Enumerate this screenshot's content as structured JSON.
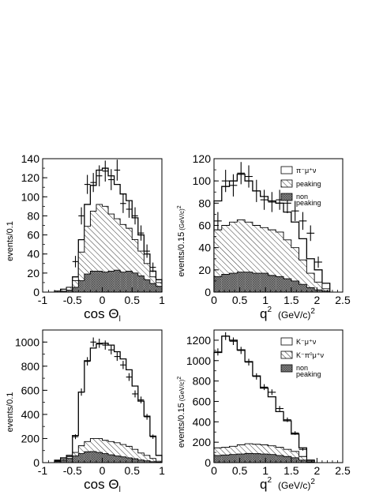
{
  "chart_data": [
    {
      "type": "bar",
      "ylabel": "events/0.1",
      "xlabel_main": "cos Θ",
      "xlabel_sub": "l",
      "xlim": [
        -1,
        1
      ],
      "ylim": [
        0,
        140
      ],
      "xticks": [
        -1,
        -0.5,
        0,
        0.5,
        1
      ],
      "yticks": [
        0,
        20,
        40,
        60,
        80,
        100,
        120,
        140
      ],
      "bin_edges": [
        -0.8,
        -0.7,
        -0.6,
        -0.5,
        -0.4,
        -0.3,
        -0.2,
        -0.1,
        0.0,
        0.1,
        0.2,
        0.3,
        0.4,
        0.5,
        0.6,
        0.7,
        0.8,
        0.9,
        1.0
      ],
      "series": [
        {
          "role": "total",
          "values": [
            1,
            3,
            5,
            16,
            55,
            92,
            112,
            128,
            130,
            122,
            113,
            103,
            96,
            78,
            60,
            40,
            22,
            13
          ]
        },
        {
          "role": "peaking",
          "values": [
            1,
            3,
            5,
            12,
            42,
            69,
            85,
            92,
            90,
            82,
            77,
            71,
            67,
            55,
            43,
            30,
            16,
            10
          ]
        },
        {
          "role": "non-peaking",
          "values": [
            0,
            1,
            2,
            5,
            12,
            19,
            22,
            22,
            21,
            22,
            23,
            21,
            22,
            20,
            17,
            13,
            9,
            6
          ]
        }
      ],
      "points": {
        "x": [
          -0.45,
          -0.35,
          -0.25,
          -0.15,
          -0.05,
          0.05,
          0.15,
          0.25,
          0.35,
          0.45,
          0.55,
          0.65,
          0.75,
          0.85
        ],
        "y": [
          32,
          80,
          113,
          115,
          122,
          127,
          118,
          128,
          93,
          87,
          80,
          62,
          43,
          26
        ],
        "err": [
          6,
          9,
          10,
          10,
          11,
          11,
          11,
          11,
          10,
          9,
          9,
          8,
          7,
          5
        ]
      }
    },
    {
      "type": "bar",
      "ylabel": "events/0.15",
      "ylabel_unit": "(GeV/c)",
      "ylabel_unit_exp": "2",
      "xlabel_main": "q",
      "xlabel_exp": "2",
      "xlabel_unit": "(GeV/c)",
      "xlabel_unit_exp": "2",
      "xlim": [
        0,
        2.5
      ],
      "ylim": [
        0,
        120
      ],
      "xticks": [
        0,
        0.5,
        1,
        1.5,
        2,
        2.5
      ],
      "yticks": [
        0,
        20,
        40,
        60,
        80,
        100,
        120
      ],
      "bin_edges": [
        0.0,
        0.15,
        0.3,
        0.45,
        0.6,
        0.75,
        0.9,
        1.05,
        1.2,
        1.35,
        1.5,
        1.65,
        1.8,
        1.95,
        2.1,
        2.25
      ],
      "series": [
        {
          "role": "total",
          "values": [
            82,
            95,
            100,
            106,
            100,
            91,
            86,
            82,
            80,
            72,
            63,
            48,
            30,
            20,
            8
          ]
        },
        {
          "role": "peaking",
          "values": [
            56,
            60,
            63,
            65,
            63,
            60,
            58,
            56,
            54,
            47,
            40,
            29,
            17,
            9,
            3
          ]
        },
        {
          "role": "non-peaking",
          "values": [
            14,
            16,
            17,
            18,
            18,
            17,
            17,
            15,
            14,
            12,
            10,
            7,
            4,
            2,
            1
          ]
        }
      ],
      "points": {
        "x": [
          0.075,
          0.225,
          0.375,
          0.525,
          0.675,
          0.825,
          0.975,
          1.125,
          1.275,
          1.425,
          1.575,
          1.725,
          1.875,
          2.025
        ],
        "y": [
          64,
          100,
          96,
          107,
          104,
          91,
          83,
          81,
          83,
          80,
          73,
          64,
          53,
          27
        ],
        "err": [
          8,
          10,
          10,
          10,
          10,
          10,
          9,
          9,
          9,
          9,
          9,
          8,
          7,
          5
        ]
      },
      "legend": {
        "placement": "top-right",
        "entries": [
          {
            "label": "π⁻μ⁺ν",
            "style": "open"
          },
          {
            "label": "peaking",
            "style": "hatched"
          },
          {
            "label": "non peaking",
            "style": "crosshatched"
          }
        ]
      }
    },
    {
      "type": "bar",
      "ylabel": "events/0.1",
      "xlabel_main": "cos Θ",
      "xlabel_sub": "l",
      "xlim": [
        -1,
        1
      ],
      "ylim": [
        0,
        1100
      ],
      "xticks": [
        -1,
        -0.5,
        0,
        0.5,
        1
      ],
      "yticks": [
        0,
        200,
        400,
        600,
        800,
        1000
      ],
      "bin_edges": [
        -0.8,
        -0.7,
        -0.6,
        -0.5,
        -0.4,
        -0.3,
        -0.2,
        -0.1,
        0.0,
        0.1,
        0.2,
        0.3,
        0.4,
        0.5,
        0.6,
        0.7,
        0.8,
        0.9,
        1.0
      ],
      "series": [
        {
          "role": "total",
          "values": [
            20,
            40,
            60,
            225,
            585,
            845,
            950,
            985,
            990,
            975,
            920,
            860,
            770,
            635,
            510,
            385,
            220,
            60
          ]
        },
        {
          "role": "peaking",
          "values": [
            15,
            30,
            50,
            85,
            140,
            175,
            200,
            200,
            185,
            175,
            165,
            150,
            135,
            110,
            80,
            60,
            35,
            12
          ]
        },
        {
          "role": "non-peaking",
          "values": [
            10,
            18,
            35,
            55,
            75,
            90,
            92,
            85,
            75,
            65,
            55,
            48,
            40,
            32,
            22,
            15,
            8,
            4
          ]
        }
      ],
      "points": {
        "x": [
          -0.45,
          -0.35,
          -0.25,
          -0.15,
          -0.05,
          0.05,
          0.15,
          0.25,
          0.35,
          0.45,
          0.55,
          0.65,
          0.75,
          0.85
        ],
        "y": [
          215,
          585,
          840,
          1000,
          990,
          975,
          935,
          880,
          810,
          710,
          570,
          520,
          380,
          215
        ],
        "err": [
          20,
          30,
          35,
          38,
          38,
          38,
          37,
          36,
          34,
          32,
          29,
          28,
          24,
          18
        ]
      }
    },
    {
      "type": "bar",
      "ylabel": "events/0.15",
      "ylabel_unit": "(GeV/c)",
      "ylabel_unit_exp": "2",
      "xlabel_main": "q",
      "xlabel_exp": "2",
      "xlabel_unit": "(GeV/c)",
      "xlabel_unit_exp": "2",
      "xlim": [
        0,
        2.5
      ],
      "ylim": [
        0,
        1300
      ],
      "xticks": [
        0,
        0.5,
        1,
        1.5,
        2,
        2.5
      ],
      "yticks": [
        0,
        200,
        400,
        600,
        800,
        1000,
        1200
      ],
      "bin_edges": [
        0.0,
        0.15,
        0.3,
        0.45,
        0.6,
        0.75,
        0.9,
        1.05,
        1.2,
        1.35,
        1.5,
        1.65,
        1.8,
        1.95
      ],
      "series": [
        {
          "role": "total",
          "values": [
            1080,
            1240,
            1200,
            1105,
            990,
            850,
            730,
            645,
            500,
            410,
            280,
            145,
            25
          ]
        },
        {
          "role": "peaking",
          "values": [
            145,
            150,
            160,
            175,
            185,
            180,
            175,
            165,
            150,
            130,
            110,
            60,
            15
          ]
        },
        {
          "role": "non-peaking",
          "values": [
            70,
            75,
            80,
            85,
            90,
            88,
            85,
            80,
            70,
            60,
            48,
            25,
            5
          ]
        }
      ],
      "points": {
        "x": [
          0.075,
          0.225,
          0.375,
          0.525,
          0.675,
          0.825,
          0.975,
          1.125,
          1.275,
          1.425,
          1.575,
          1.725
        ],
        "y": [
          1085,
          1240,
          1190,
          1100,
          985,
          845,
          740,
          690,
          530,
          420,
          290,
          130
        ],
        "err": [
          35,
          38,
          37,
          35,
          33,
          31,
          29,
          28,
          25,
          22,
          18,
          12
        ]
      },
      "legend": {
        "placement": "top-right",
        "entries": [
          {
            "label": "K⁻μ⁺ν",
            "style": "open"
          },
          {
            "label": "K⁻π⁰μ⁺ν",
            "style": "hatched"
          },
          {
            "label": "non peaking",
            "style": "crosshatched"
          }
        ]
      }
    }
  ]
}
